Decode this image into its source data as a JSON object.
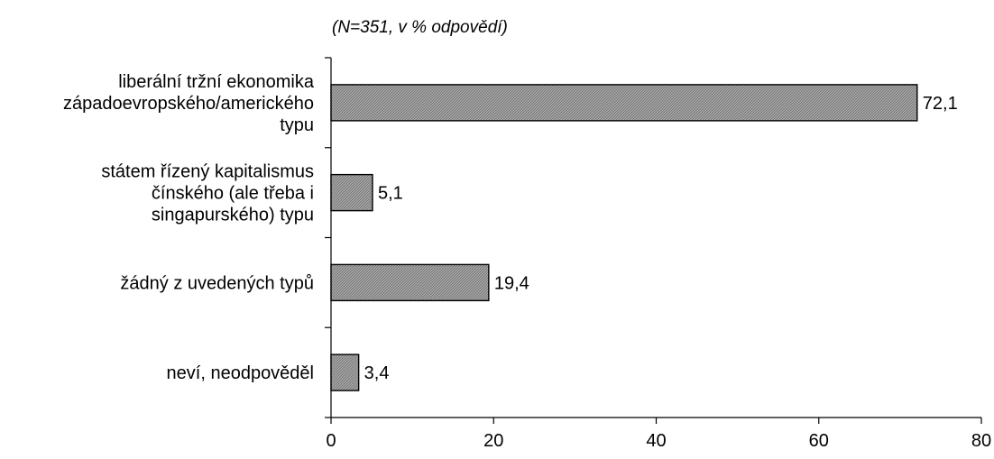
{
  "subtitle": "(N=351, v % odpovědí)",
  "colors": {
    "bar_fill": "#a8a8a8",
    "bar_stroke": "#000000",
    "axis": "#000000"
  },
  "chart_data": {
    "type": "bar",
    "orientation": "horizontal",
    "categories": [
      [
        "liberální tržní ekonomika",
        "západoevropského/amerického",
        "typu"
      ],
      [
        "státem řízený kapitalismus",
        "čínského (ale třeba i",
        "singapurského) typu"
      ],
      [
        "žádný z uvedených typů"
      ],
      [
        "neví, neodpověděl"
      ]
    ],
    "values": [
      72.1,
      5.1,
      19.4,
      3.4
    ],
    "value_labels": [
      "72,1",
      "5,1",
      "19,4",
      "3,4"
    ],
    "xlim": [
      0,
      80
    ],
    "xticks": [
      0,
      20,
      40,
      60,
      80
    ],
    "xtick_labels": [
      "0",
      "20",
      "40",
      "60",
      "80"
    ],
    "grid": false,
    "legend": "none"
  }
}
